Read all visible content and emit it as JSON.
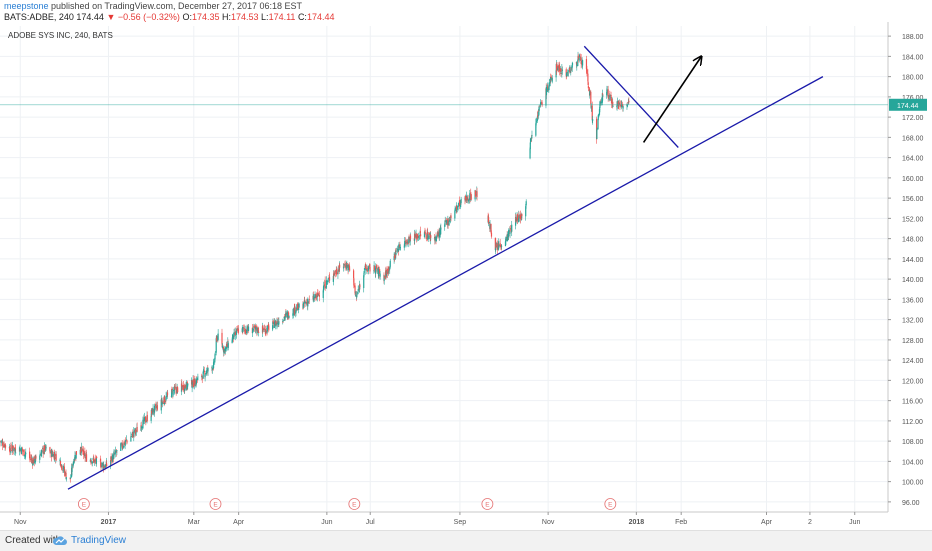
{
  "header": {
    "author": "meepstone",
    "published": " published on TradingView.com, December 27, 2017 06:18 EST",
    "symbol": "BATS:ADBE, 240",
    "last": "174.44",
    "down_glyph": "▼",
    "change": "−0.56 (−0.32%)",
    "open_label": "O:",
    "open": "174.35",
    "high_label": "H:",
    "high": "174.53",
    "low_label": "L:",
    "low": "174.11",
    "close_label": "C:",
    "close": "174.44"
  },
  "footer": {
    "created": "Created with",
    "brand": "TradingView"
  },
  "colors": {
    "up": "#26a69a",
    "down": "#ef5350",
    "trend": "#1a1aaa",
    "arrow": "#000000",
    "grid": "#eef1f4",
    "priceline": "#26a69a",
    "event": "#e57373"
  },
  "chart_data": {
    "type": "candlestick",
    "title": "ADOBE SYS INC, 240, BATS",
    "y_ticks": [
      "96.00",
      "100.00",
      "104.00",
      "108.00",
      "112.00",
      "116.00",
      "120.00",
      "124.00",
      "128.00",
      "132.00",
      "136.00",
      "140.00",
      "144.00",
      "148.00",
      "152.00",
      "156.00",
      "160.00",
      "164.00",
      "168.00",
      "172.00",
      "176.00",
      "180.00",
      "184.00",
      "188.00"
    ],
    "ylim": [
      94,
      190
    ],
    "x_tick_labels": [
      "Nov",
      "2017",
      "Mar",
      "Apr",
      "Jun",
      "Jul",
      "Sep",
      "Nov",
      "2018",
      "Feb",
      "Apr",
      "2",
      "Jun"
    ],
    "x_tick_dates": [
      "2016-11-01",
      "2017-01-01",
      "2017-03-01",
      "2017-04-01",
      "2017-06-01",
      "2017-07-01",
      "2017-09-01",
      "2017-11-01",
      "2018-01-01",
      "2018-02-01",
      "2018-04-01",
      "2018-05-01",
      "2018-06-01"
    ],
    "xlim": [
      "2016-10-18",
      "2018-06-24"
    ],
    "last_price": "174.44",
    "event_marker": "E",
    "event_dates": [
      "2016-12-15",
      "2017-03-16",
      "2017-06-20",
      "2017-09-20",
      "2017-12-14"
    ],
    "price_path": [
      [
        "2016-10-18",
        108.0
      ],
      [
        "2016-10-25",
        106.5
      ],
      [
        "2016-11-01",
        106.5
      ],
      [
        "2016-11-10",
        104.0
      ],
      [
        "2016-11-18",
        106.5
      ],
      [
        "2016-11-28",
        104.5
      ],
      [
        "2016-12-05",
        99.5
      ],
      [
        "2016-12-08",
        104.5
      ],
      [
        "2016-12-12",
        107.0
      ],
      [
        "2016-12-16",
        104.8
      ],
      [
        "2016-12-23",
        104.0
      ],
      [
        "2016-12-30",
        103.0
      ],
      [
        "2017-01-10",
        107.0
      ],
      [
        "2017-01-20",
        110.0
      ],
      [
        "2017-02-01",
        114.0
      ],
      [
        "2017-02-15",
        118.0
      ],
      [
        "2017-03-01",
        119.5
      ],
      [
        "2017-03-15",
        123.0
      ],
      [
        "2017-03-17",
        129.0
      ],
      [
        "2017-03-22",
        126.0
      ],
      [
        "2017-04-01",
        130.0
      ],
      [
        "2017-04-20",
        130.0
      ],
      [
        "2017-05-10",
        134.0
      ],
      [
        "2017-05-25",
        136.5
      ],
      [
        "2017-06-05",
        141.0
      ],
      [
        "2017-06-14",
        143.0
      ],
      [
        "2017-06-19",
        141.0
      ],
      [
        "2017-06-21",
        136.0
      ],
      [
        "2017-06-27",
        142.0
      ],
      [
        "2017-07-05",
        142.0
      ],
      [
        "2017-07-10",
        140.0
      ],
      [
        "2017-07-20",
        146.0
      ],
      [
        "2017-07-28",
        148.0
      ],
      [
        "2017-08-07",
        149.0
      ],
      [
        "2017-08-15",
        148.0
      ],
      [
        "2017-08-25",
        152.0
      ],
      [
        "2017-09-01",
        155.0
      ],
      [
        "2017-09-12",
        157.0
      ],
      [
        "2017-09-18",
        155.5
      ],
      [
        "2017-09-21",
        151.0
      ],
      [
        "2017-09-26",
        146.0
      ],
      [
        "2017-10-03",
        148.0
      ],
      [
        "2017-10-10",
        152.0
      ],
      [
        "2017-10-16",
        153.0
      ],
      [
        "2017-10-20",
        168.0
      ],
      [
        "2017-10-25",
        173.0
      ],
      [
        "2017-11-01",
        178.0
      ],
      [
        "2017-11-07",
        182.0
      ],
      [
        "2017-11-14",
        180.5
      ],
      [
        "2017-11-22",
        183.5
      ],
      [
        "2017-11-27",
        182.0
      ],
      [
        "2017-11-30",
        176.0
      ],
      [
        "2017-12-01",
        173.0
      ],
      [
        "2017-12-04",
        167.0
      ],
      [
        "2017-12-07",
        175.0
      ],
      [
        "2017-12-11",
        177.5
      ],
      [
        "2017-12-15",
        175.0
      ],
      [
        "2017-12-20",
        174.5
      ],
      [
        "2017-12-27",
        174.44
      ]
    ],
    "gaps": [
      [
        "2017-09-13",
        "2017-09-20"
      ],
      [
        "2017-10-17",
        "2017-10-19"
      ]
    ],
    "drawings": [
      {
        "type": "trendline",
        "from": [
          "2016-12-04",
          98.5
        ],
        "to": [
          "2018-05-10",
          180.0
        ]
      },
      {
        "type": "trendline",
        "from": [
          "2017-11-26",
          186.0
        ],
        "to": [
          "2018-01-30",
          166.0
        ]
      },
      {
        "type": "arrow",
        "from": [
          "2018-01-06",
          167.0
        ],
        "to": [
          "2018-02-15",
          184.0
        ]
      }
    ]
  }
}
